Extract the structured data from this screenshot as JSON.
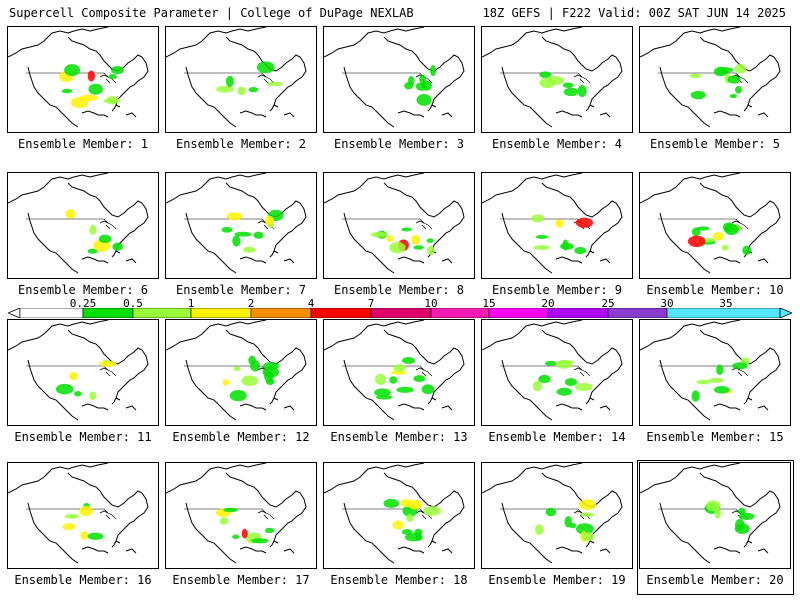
{
  "header": {
    "title": "Supercell Composite Parameter | College of DuPage NEXLAB",
    "run_info": "18Z GEFS | F222 Valid: 00Z SAT JUN 14 2025"
  },
  "colorbar": {
    "labels": [
      "0.25",
      "0.5",
      "1",
      "2",
      "4",
      "7",
      "10",
      "15",
      "20",
      "25",
      "30",
      "35"
    ],
    "colors": [
      "#ffffff",
      "#00e000",
      "#9aff3a",
      "#fff200",
      "#ff8c00",
      "#ff0000",
      "#e0006a",
      "#ff1ab3",
      "#ff00ff",
      "#b000ff",
      "#8a3ccf",
      "#55e6ff"
    ]
  },
  "panels": [
    {
      "label": "Ensemble Member: 1"
    },
    {
      "label": "Ensemble Member: 2"
    },
    {
      "label": "Ensemble Member: 3"
    },
    {
      "label": "Ensemble Member: 4"
    },
    {
      "label": "Ensemble Member: 5"
    },
    {
      "label": "Ensemble Member: 6"
    },
    {
      "label": "Ensemble Member: 7"
    },
    {
      "label": "Ensemble Member: 8"
    },
    {
      "label": "Ensemble Member: 9"
    },
    {
      "label": "Ensemble Member: 10"
    },
    {
      "label": "Ensemble Member: 11"
    },
    {
      "label": "Ensemble Member: 12"
    },
    {
      "label": "Ensemble Member: 13"
    },
    {
      "label": "Ensemble Member: 14"
    },
    {
      "label": "Ensemble Member: 15"
    },
    {
      "label": "Ensemble Member: 16"
    },
    {
      "label": "Ensemble Member: 17"
    },
    {
      "label": "Ensemble Member: 18"
    },
    {
      "label": "Ensemble Member: 19"
    },
    {
      "label": "Ensemble Member: 20"
    }
  ],
  "selected_member": "Ensemble Member: 20"
}
